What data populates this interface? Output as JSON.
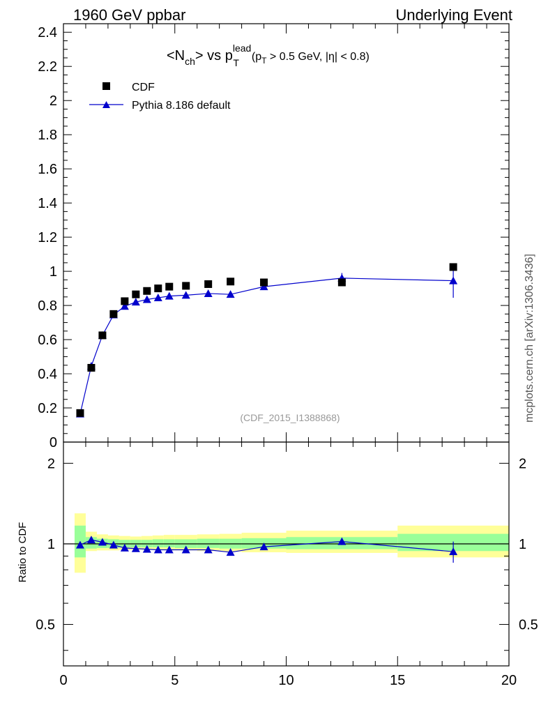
{
  "header": {
    "left": "1960 GeV ppbar",
    "right": "Underlying Event"
  },
  "side_label": "mcplots.cern.ch [arXiv:1306.3436]",
  "chart_data": [
    {
      "type": "scatter",
      "panel": "main",
      "title_parts": {
        "lhs": "<N",
        "lhs_sub": "ch",
        "mid": "> vs p",
        "p_sup": "lead",
        "p_sub": "T",
        "cut_open": "(p",
        "cut_sub": "T",
        "cut_rest": " > 0.5 GeV, |η| < 0.8)"
      },
      "analysis_tag": "(CDF_2015_I1388868)",
      "xlim": [
        0,
        20
      ],
      "ylim": [
        0,
        2.45
      ],
      "yticks": [
        "0",
        "0.2",
        "0.4",
        "0.6",
        "0.8",
        "1",
        "1.2",
        "1.4",
        "1.6",
        "1.8",
        "2",
        "2.2",
        "2.4"
      ],
      "legend_position": "top-left",
      "series": [
        {
          "name": "CDF",
          "style": "black-square",
          "color": "#000000",
          "x": [
            0.75,
            1.25,
            1.75,
            2.25,
            2.75,
            3.25,
            3.75,
            4.25,
            4.75,
            5.5,
            6.5,
            7.5,
            9.0,
            12.5,
            17.5
          ],
          "y": [
            0.17,
            0.435,
            0.625,
            0.75,
            0.825,
            0.865,
            0.885,
            0.9,
            0.91,
            0.915,
            0.925,
            0.94,
            0.935,
            0.935,
            1.025
          ]
        },
        {
          "name": "Pythia 8.186 default",
          "style": "blue-triangle-line",
          "color": "#0000cc",
          "x": [
            0.75,
            1.25,
            1.75,
            2.25,
            2.75,
            3.25,
            3.75,
            4.25,
            4.75,
            5.5,
            6.5,
            7.5,
            9.0,
            12.5,
            17.5
          ],
          "y": [
            0.165,
            0.445,
            0.625,
            0.745,
            0.795,
            0.82,
            0.835,
            0.845,
            0.855,
            0.86,
            0.87,
            0.865,
            0.91,
            0.96,
            0.945
          ],
          "yerr": [
            0.004,
            0.004,
            0.004,
            0.004,
            0.004,
            0.004,
            0.004,
            0.004,
            0.004,
            0.004,
            0.006,
            0.015,
            0.01,
            0.03,
            0.1
          ]
        }
      ]
    },
    {
      "type": "line",
      "panel": "ratio",
      "ylabel": "Ratio to CDF",
      "xlim": [
        0,
        20
      ],
      "ylim": [
        0.35,
        2.4
      ],
      "log_y": true,
      "yticks_major": [
        "0.5",
        "1",
        "2"
      ],
      "xticks": [
        "0",
        "5",
        "10",
        "15",
        "20"
      ],
      "bands": {
        "edges": [
          0.5,
          1.0,
          1.5,
          2.0,
          2.5,
          3.0,
          3.5,
          4.0,
          4.5,
          5.0,
          6.0,
          7.0,
          8.0,
          10.0,
          15.0,
          20.0
        ],
        "yellow_lo": [
          0.78,
          0.94,
          0.945,
          0.945,
          0.95,
          0.95,
          0.95,
          0.95,
          0.945,
          0.945,
          0.94,
          0.935,
          0.93,
          0.925,
          0.89
        ],
        "yellow_hi": [
          1.3,
          1.11,
          1.085,
          1.075,
          1.07,
          1.065,
          1.07,
          1.075,
          1.08,
          1.08,
          1.085,
          1.09,
          1.1,
          1.12,
          1.17
        ],
        "green_lo": [
          0.89,
          0.96,
          0.965,
          0.965,
          0.97,
          0.97,
          0.97,
          0.97,
          0.97,
          0.965,
          0.965,
          0.96,
          0.96,
          0.955,
          0.94
        ],
        "green_hi": [
          1.17,
          1.06,
          1.045,
          1.04,
          1.035,
          1.035,
          1.035,
          1.04,
          1.04,
          1.04,
          1.045,
          1.045,
          1.05,
          1.06,
          1.09
        ],
        "yellow_color": "#ffff99",
        "green_color": "#99ff99"
      },
      "series": [
        {
          "name": "Pythia 8.186 default",
          "color": "#0000cc",
          "x": [
            0.75,
            1.25,
            1.75,
            2.25,
            2.75,
            3.25,
            3.75,
            4.25,
            4.75,
            5.5,
            6.5,
            7.5,
            9.0,
            12.5,
            17.5
          ],
          "y": [
            0.99,
            1.035,
            1.015,
            0.99,
            0.965,
            0.96,
            0.955,
            0.95,
            0.95,
            0.95,
            0.95,
            0.93,
            0.975,
            1.02,
            0.935
          ],
          "yerr": [
            0.004,
            0.004,
            0.004,
            0.004,
            0.004,
            0.004,
            0.004,
            0.004,
            0.004,
            0.004,
            0.006,
            0.015,
            0.01,
            0.03,
            0.085
          ]
        }
      ]
    }
  ]
}
